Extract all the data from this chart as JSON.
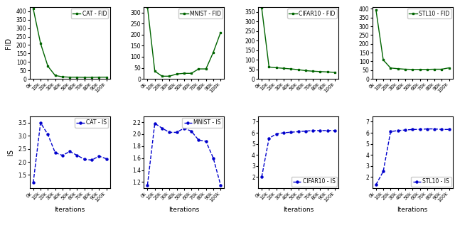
{
  "iterations": [
    0,
    10000,
    20000,
    30000,
    40000,
    50000,
    60000,
    70000,
    80000,
    90000,
    100000
  ],
  "xtick_labels": [
    "0k",
    "10k",
    "20k",
    "30k",
    "40k",
    "50k",
    "60k",
    "70k",
    "80k",
    "90k",
    "100k"
  ],
  "fid_cat": [
    415,
    210,
    75,
    20,
    12,
    10,
    10,
    9,
    9,
    10,
    10
  ],
  "fid_mnist": [
    325,
    35,
    12,
    12,
    22,
    25,
    25,
    45,
    45,
    120,
    210
  ],
  "fid_cifar10": [
    370,
    62,
    58,
    55,
    52,
    48,
    43,
    40,
    38,
    36,
    34
  ],
  "fid_stl10": [
    395,
    108,
    62,
    58,
    55,
    54,
    54,
    54,
    55,
    55,
    63
  ],
  "is_cat": [
    1.2,
    3.5,
    3.05,
    2.35,
    2.25,
    2.4,
    2.25,
    2.1,
    2.07,
    2.22,
    2.12
  ],
  "is_mnist": [
    1.15,
    2.18,
    2.1,
    2.03,
    2.03,
    2.1,
    2.05,
    1.9,
    1.88,
    1.6,
    1.15
  ],
  "is_cifar10": [
    2.0,
    5.5,
    5.9,
    6.0,
    6.05,
    6.1,
    6.15,
    6.2,
    6.2,
    6.2,
    6.2
  ],
  "is_stl10": [
    1.3,
    2.5,
    6.1,
    6.2,
    6.25,
    6.3,
    6.3,
    6.35,
    6.35,
    6.3,
    6.3
  ],
  "fid_color": "#006400",
  "is_color": "#0000cc",
  "fid_ylim_cat": [
    0,
    425
  ],
  "fid_ylim_mnist": [
    0,
    325
  ],
  "fid_ylim_cifar10": [
    0,
    375
  ],
  "fid_ylim_stl10": [
    0,
    410
  ],
  "is_ylim_cat": [
    1.0,
    3.75
  ],
  "is_ylim_mnist": [
    1.1,
    2.3
  ],
  "is_ylim_cifar10": [
    1.0,
    7.5
  ],
  "is_ylim_stl10": [
    1.0,
    7.5
  ],
  "fid_yticks_cat": [
    0,
    50,
    100,
    150,
    200,
    250,
    300,
    350,
    400
  ],
  "fid_yticks_mnist": [
    0,
    50,
    100,
    150,
    200,
    250,
    300
  ],
  "fid_yticks_cifar10": [
    0,
    50,
    100,
    150,
    200,
    250,
    300,
    350
  ],
  "fid_yticks_stl10": [
    0,
    50,
    100,
    150,
    200,
    250,
    300,
    350,
    400
  ],
  "is_yticks_cat": [
    1.5,
    2.0,
    2.5,
    3.0,
    3.5
  ],
  "is_yticks_mnist": [
    1.2,
    1.4,
    1.6,
    1.8,
    2.0,
    2.2
  ],
  "is_yticks_cifar10": [
    2,
    3,
    4,
    5,
    6,
    7
  ],
  "is_yticks_stl10": [
    2,
    3,
    4,
    5,
    6,
    7
  ],
  "labels_fid": [
    "CAT - FID",
    "MNIST - FID",
    "CIFAR10 - FID",
    "STL10 - FID"
  ],
  "labels_is": [
    "CAT - IS",
    "MNIST - IS",
    "CIFAR10 - IS",
    "STL10 - IS"
  ],
  "ylabel_fid": "FID",
  "ylabel_is": "IS",
  "xlabel": "Iterations"
}
